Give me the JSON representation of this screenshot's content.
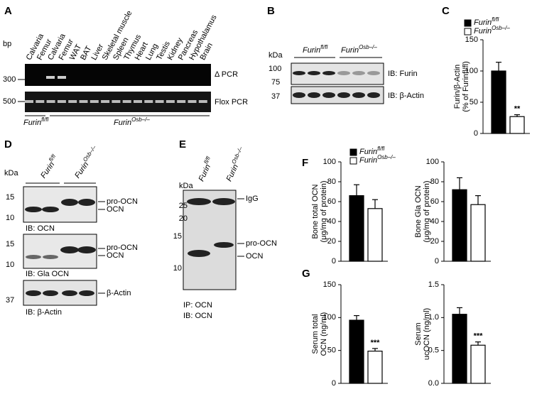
{
  "panels": {
    "A": {
      "letter": "A",
      "bp_label": "bp",
      "lanes": [
        "Calvaria",
        "Femur",
        "Calvaria",
        "Femur",
        "WAT",
        "BAT",
        "Liver",
        "Skeletal muscle",
        "Spleen",
        "Thymus",
        "Heart",
        "Lung",
        "Testis",
        "Kidney",
        "Pancreas",
        "Hypothalamus",
        "Brain"
      ],
      "markers": [
        "300",
        "500"
      ],
      "gel_labels": [
        "Δ PCR",
        "Flox PCR"
      ],
      "groups": [
        {
          "name": "Furin",
          "sup": "fl/fl"
        },
        {
          "name": "Furin",
          "sup": "Osb–/–"
        }
      ]
    },
    "B": {
      "letter": "B",
      "kda": "kDa",
      "groups": [
        {
          "name": "Furin",
          "sup": "fl/fl"
        },
        {
          "name": "Furin",
          "sup": "Osb–/–"
        }
      ],
      "markers": [
        "100",
        "75",
        "37"
      ],
      "blots": [
        "IB: Furin",
        "IB: β-Actin"
      ]
    },
    "C": {
      "letter": "C"
    },
    "D": {
      "letter": "D",
      "kda": "kDa",
      "groups": [
        {
          "name": "Furin",
          "sup": "fl/fl"
        },
        {
          "name": "Furin",
          "sup": "Osb–/–"
        }
      ],
      "markers": [
        "15",
        "10",
        "15",
        "10",
        "37"
      ],
      "band_labels": [
        "pro-OCN",
        "OCN",
        "pro-OCN",
        "OCN",
        "β-Actin"
      ],
      "blots": [
        "IB: OCN",
        "IB: Gla OCN",
        "IB: β-Actin"
      ]
    },
    "E": {
      "letter": "E",
      "kda": "kDa",
      "groups": [
        {
          "name": "Furin",
          "sup": "fl/fl"
        },
        {
          "name": "Furin",
          "sup": "Osb–/–"
        }
      ],
      "markers": [
        "25",
        "20",
        "15",
        "10"
      ],
      "band_labels": [
        "IgG",
        "pro-OCN",
        "OCN"
      ],
      "captions": [
        "IP: OCN",
        "IB: OCN"
      ]
    },
    "F": {
      "letter": "F"
    },
    "G": {
      "letter": "G"
    }
  },
  "chart_data": [
    {
      "type": "bar",
      "ylabel": [
        "Furin/β-Actin",
        "(% of Furinfl/fl)"
      ],
      "ylim": [
        0,
        150
      ],
      "yticks": [
        0,
        50,
        100,
        150
      ],
      "legend": true,
      "annotation": "**",
      "series": [
        {
          "name": "Furin",
          "sup": "fl/fl",
          "color": "#000000",
          "values": [
            100
          ],
          "errors": [
            14
          ]
        },
        {
          "name": "Furin",
          "sup": "Osb–/–",
          "color": "#ffffff",
          "values": [
            27
          ],
          "errors": [
            3
          ]
        }
      ]
    },
    {
      "type": "bar",
      "ylabel": [
        "Bone total OCN",
        "(μg/mg of protein)"
      ],
      "ylim": [
        0,
        100
      ],
      "yticks": [
        0,
        20,
        40,
        60,
        80,
        100
      ],
      "legend": true,
      "series": [
        {
          "name": "Furin",
          "sup": "fl/fl",
          "color": "#000000",
          "values": [
            66
          ],
          "errors": [
            11
          ]
        },
        {
          "name": "Furin",
          "sup": "Osb–/–",
          "color": "#ffffff",
          "values": [
            53
          ],
          "errors": [
            9
          ]
        }
      ]
    },
    {
      "type": "bar",
      "ylabel": [
        "Bone Gla OCN",
        "(μg/mg of protein)"
      ],
      "ylim": [
        0,
        100
      ],
      "yticks": [
        0,
        20,
        40,
        60,
        80,
        100
      ],
      "legend": false,
      "series": [
        {
          "color": "#000000",
          "values": [
            72
          ],
          "errors": [
            12
          ]
        },
        {
          "color": "#ffffff",
          "values": [
            57
          ],
          "errors": [
            9
          ]
        }
      ]
    },
    {
      "type": "bar",
      "ylabel": [
        "Serum total",
        "OCN (ng/ml)"
      ],
      "ylim": [
        0,
        150
      ],
      "yticks": [
        0,
        50,
        100,
        150
      ],
      "legend": false,
      "annotation": "***",
      "series": [
        {
          "color": "#000000",
          "values": [
            96
          ],
          "errors": [
            7
          ]
        },
        {
          "color": "#ffffff",
          "values": [
            49
          ],
          "errors": [
            4
          ]
        }
      ]
    },
    {
      "type": "bar",
      "ylabel": [
        "Serum",
        "ucOCN (ng/ml)"
      ],
      "ylim": [
        0,
        1.5
      ],
      "yticks": [
        {
          "value": 0,
          "label": "0.0"
        },
        0.5,
        {
          "value": 1,
          "label": "1.0"
        },
        1.5
      ],
      "legend": false,
      "annotation": "***",
      "series": [
        {
          "color": "#000000",
          "values": [
            1.05
          ],
          "errors": [
            0.1
          ]
        },
        {
          "color": "#ffffff",
          "values": [
            0.58
          ],
          "errors": [
            0.05
          ]
        }
      ]
    }
  ]
}
